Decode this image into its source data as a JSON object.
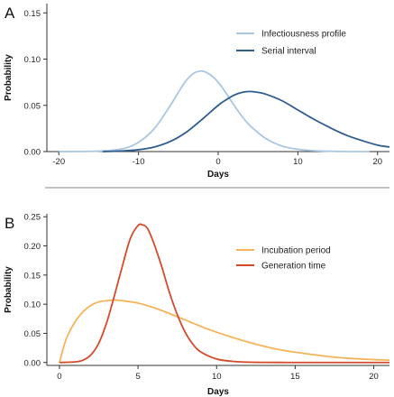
{
  "chart_data": [
    {
      "panel_label": "A",
      "type": "line",
      "xlabel": "Days",
      "ylabel": "Probability",
      "xlim": [
        -21.5,
        21.5
      ],
      "ylim": [
        0,
        0.16
      ],
      "xticks": [
        -20,
        -10,
        0,
        10,
        20
      ],
      "yticks": [
        0.0,
        0.05,
        0.1,
        0.15
      ],
      "ytick_labels": [
        "0.00",
        "0.05",
        "0.10",
        "0.15"
      ],
      "grid": false,
      "legend_position": "top-right",
      "series": [
        {
          "name": "Infectiousness profile",
          "color": "#a9c6e2",
          "x": [
            -20,
            -15,
            -12,
            -10,
            -8,
            -6,
            -5,
            -4,
            -3,
            -2,
            -1,
            0,
            1,
            2,
            3,
            4,
            6,
            8,
            10,
            12,
            15,
            19
          ],
          "y": [
            0.0,
            0.0005,
            0.003,
            0.01,
            0.025,
            0.05,
            0.064,
            0.077,
            0.085,
            0.087,
            0.083,
            0.075,
            0.063,
            0.05,
            0.038,
            0.028,
            0.014,
            0.006,
            0.0025,
            0.001,
            0.0002,
            0.0
          ]
        },
        {
          "name": "Serial interval",
          "color": "#2f5c91",
          "x": [
            -14.5,
            -12,
            -10,
            -8,
            -6,
            -4,
            -2,
            0,
            1,
            2,
            3,
            4,
            5,
            6,
            8,
            10,
            12,
            14,
            16,
            18,
            20,
            21.5
          ],
          "y": [
            0.0,
            0.0007,
            0.002,
            0.005,
            0.011,
            0.021,
            0.035,
            0.05,
            0.056,
            0.061,
            0.064,
            0.065,
            0.064,
            0.062,
            0.055,
            0.045,
            0.035,
            0.026,
            0.018,
            0.012,
            0.007,
            0.005
          ]
        }
      ]
    },
    {
      "panel_label": "B",
      "type": "line",
      "xlabel": "Days",
      "ylabel": "Probability",
      "xlim": [
        -0.8,
        21
      ],
      "ylim": [
        -0.005,
        0.255
      ],
      "xticks": [
        0,
        5,
        10,
        15,
        20
      ],
      "yticks": [
        0.0,
        0.05,
        0.1,
        0.15,
        0.2,
        0.25
      ],
      "ytick_labels": [
        "0.00",
        "0.05",
        "0.10",
        "0.15",
        "0.20",
        "0.25"
      ],
      "grid": false,
      "legend_position": "top-right",
      "series": [
        {
          "name": "Incubation period",
          "color": "#f5b35a",
          "x": [
            0,
            0.25,
            0.5,
            1,
            1.5,
            2,
            2.5,
            3,
            3.5,
            4,
            5,
            6,
            7,
            8,
            9,
            10,
            12,
            14,
            16,
            18,
            20,
            21
          ],
          "y": [
            0.0,
            0.025,
            0.045,
            0.07,
            0.087,
            0.098,
            0.104,
            0.106,
            0.107,
            0.106,
            0.102,
            0.094,
            0.084,
            0.073,
            0.062,
            0.052,
            0.035,
            0.022,
            0.014,
            0.008,
            0.005,
            0.004
          ]
        },
        {
          "name": "Generation time",
          "color": "#d64a2c",
          "x": [
            0,
            1,
            1.5,
            2,
            2.5,
            3,
            3.5,
            4,
            4.5,
            5,
            5.3,
            5.6,
            6,
            6.5,
            7,
            7.5,
            8,
            8.5,
            9,
            10,
            11,
            12,
            14,
            16,
            21
          ],
          "y": [
            0.0,
            0.001,
            0.004,
            0.013,
            0.033,
            0.068,
            0.115,
            0.165,
            0.212,
            0.235,
            0.236,
            0.23,
            0.205,
            0.165,
            0.12,
            0.082,
            0.052,
            0.031,
            0.018,
            0.006,
            0.002,
            0.0006,
            0.0001,
            0.0,
            0.0
          ]
        }
      ]
    }
  ]
}
